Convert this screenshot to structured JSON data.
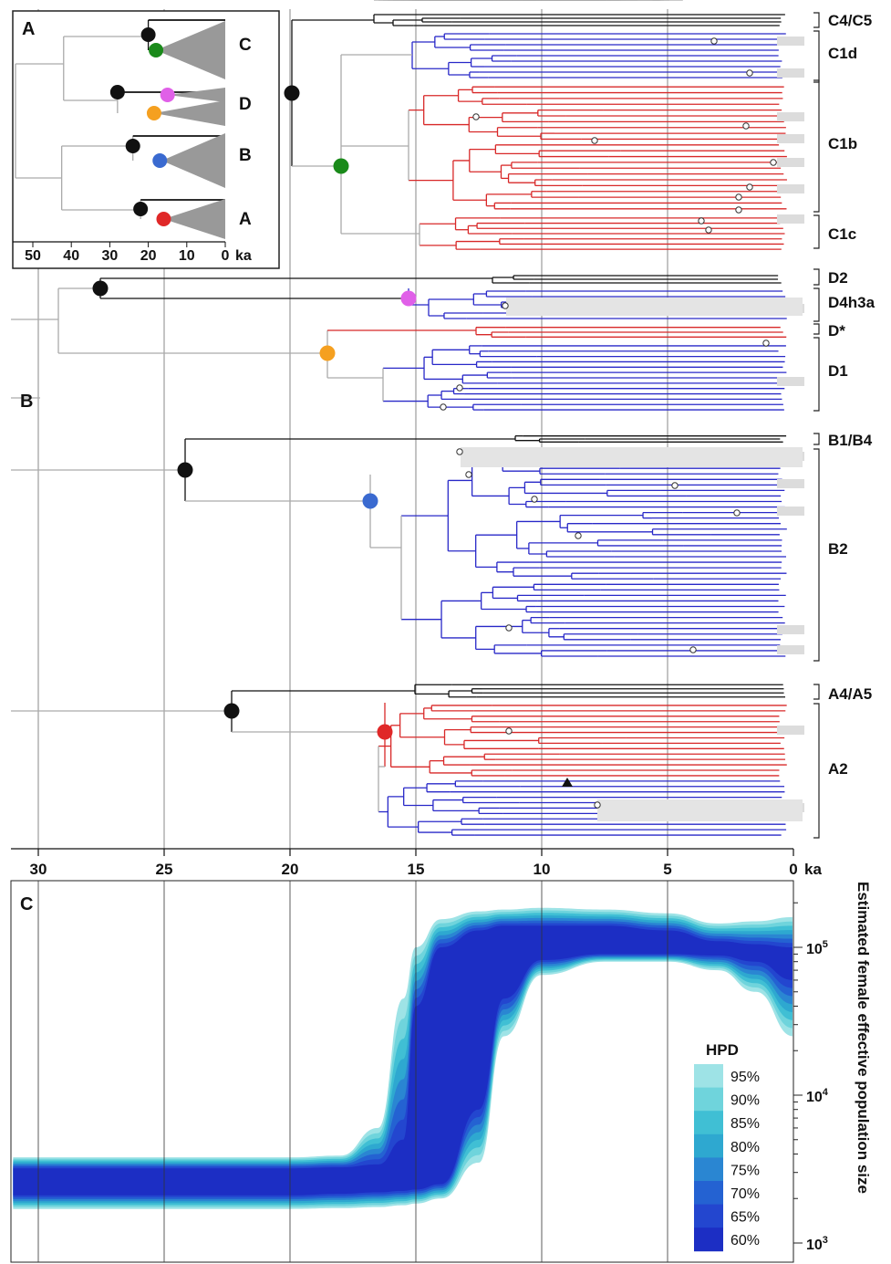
{
  "panel_labels": {
    "a": "A",
    "b": "B",
    "c": "C"
  },
  "inset": {
    "axis_ticks": [
      "50",
      "40",
      "30",
      "20",
      "10",
      "0"
    ],
    "axis_unit": "ka",
    "clades": [
      "C",
      "D",
      "B",
      "A"
    ],
    "node_colors": {
      "C": "#1a8a1a",
      "D_upper": "#e060e8",
      "D_lower": "#f5a020",
      "B": "#3a6ad0",
      "A": "#e02828"
    }
  },
  "tree": {
    "clade_labels": [
      "C4/C5",
      "C1d",
      "C1b",
      "C1c",
      "D2",
      "D4h3a",
      "D*",
      "D1",
      "B1/B4",
      "B2",
      "A4/A5",
      "A2"
    ],
    "time_axis_ticks": [
      "30",
      "25",
      "20",
      "15",
      "10",
      "5",
      "0"
    ],
    "time_axis_unit": "ka",
    "branch_colors": {
      "black": "#111111",
      "blue": "#2828c8",
      "red": "#d82828",
      "grey": "#aaaaaa"
    }
  },
  "bsp": {
    "ylabel": "Estimated female effective population size",
    "y_ticks": [
      {
        "base": "10",
        "exp": "3"
      },
      {
        "base": "10",
        "exp": "4"
      },
      {
        "base": "10",
        "exp": "5"
      }
    ],
    "legend_title": "HPD",
    "legend": [
      {
        "label": "95%",
        "color": "#9ee3e6"
      },
      {
        "label": "90%",
        "color": "#6fd4dc"
      },
      {
        "label": "85%",
        "color": "#40bfd4"
      },
      {
        "label": "80%",
        "color": "#2ea8d0"
      },
      {
        "label": "75%",
        "color": "#2a86d2"
      },
      {
        "label": "70%",
        "color": "#2462d2"
      },
      {
        "label": "65%",
        "color": "#2346cf"
      },
      {
        "label": "60%",
        "color": "#1c2ec4"
      }
    ]
  },
  "chart_data": {
    "type": "area",
    "title": "",
    "xlabel": "ka",
    "ylabel": "Estimated female effective population size",
    "x_ticks": [
      30,
      25,
      20,
      15,
      10,
      5,
      0
    ],
    "y_scale": "log",
    "ylim": [
      1000,
      200000
    ],
    "x": [
      31,
      20,
      18,
      16.5,
      15.5,
      15,
      14,
      12.5,
      11.5,
      10,
      7.5,
      5,
      3,
      1.5,
      0
    ],
    "series": [
      {
        "name": "60%",
        "lower": [
          2100,
          2100,
          2150,
          2200,
          2250,
          2300,
          2500,
          8000,
          45000,
          82000,
          90000,
          90000,
          88000,
          80000,
          60000
        ],
        "upper": [
          3200,
          3200,
          3250,
          3400,
          5000,
          40000,
          100000,
          130000,
          140000,
          140000,
          140000,
          130000,
          110000,
          105000,
          100000
        ]
      },
      {
        "name": "95%",
        "lower": [
          1700,
          1700,
          1720,
          1750,
          1800,
          1850,
          2000,
          3500,
          25000,
          65000,
          80000,
          80000,
          70000,
          50000,
          25000
        ],
        "upper": [
          3800,
          3800,
          3900,
          6000,
          45000,
          100000,
          155000,
          175000,
          180000,
          185000,
          180000,
          170000,
          145000,
          150000,
          160000
        ]
      }
    ]
  }
}
